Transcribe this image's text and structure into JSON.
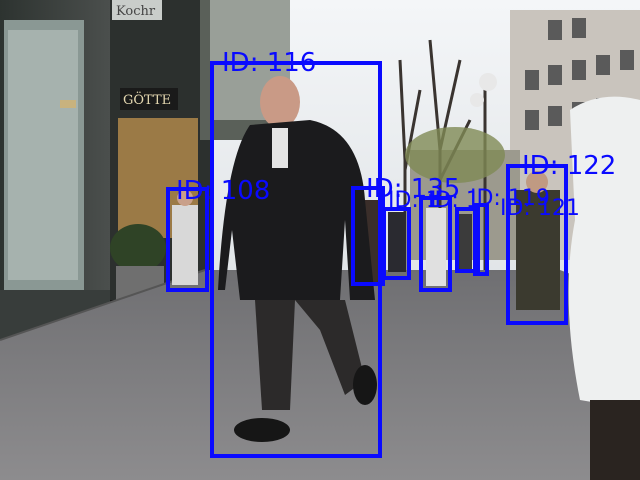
{
  "scene": {
    "description_visible": "",
    "signs": {
      "shop_sign_top": "Kochr",
      "shop_sign_mid": "GÖTTE",
      "shop_sign_window": "GÖTTE"
    },
    "box_color": "#0a0aff"
  },
  "detections": [
    {
      "id_label": "ID: 116"
    },
    {
      "id_label": "ID: 108"
    },
    {
      "id_label": "ID: 122"
    },
    {
      "id_label": "ID: 135"
    },
    {
      "id_label": "ID: 121"
    },
    {
      "id_label": "ID: 119"
    },
    {
      "id_label": "ID: 1"
    },
    {
      "id_label": "ID: 1"
    }
  ]
}
